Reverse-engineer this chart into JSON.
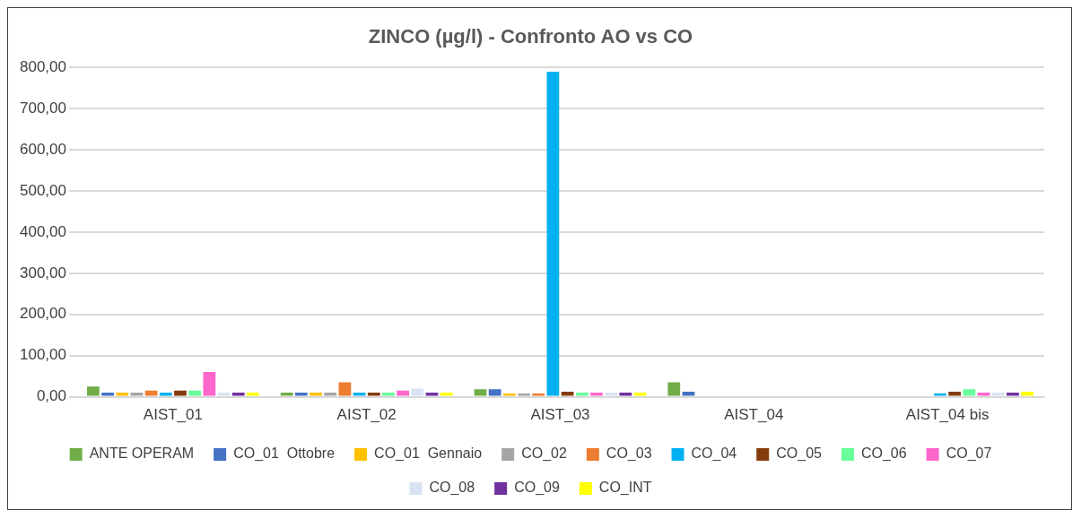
{
  "chart_data": {
    "type": "bar",
    "title": "ZINCO (µg/l) - Confronto AO vs CO",
    "categories": [
      "AIST_01",
      "AIST_02",
      "AIST_03",
      "AIST_04",
      "AIST_04 bis"
    ],
    "series": [
      {
        "name": "ANTE OPERAM",
        "color": "#70ad47",
        "values": [
          25,
          10,
          18,
          35,
          null
        ]
      },
      {
        "name": "CO_01  Ottobre",
        "color": "#4472c4",
        "values": [
          10,
          10,
          18,
          12,
          null
        ]
      },
      {
        "name": "CO_01  Gennaio",
        "color": "#ffc000",
        "values": [
          10,
          10,
          8,
          null,
          null
        ]
      },
      {
        "name": "CO_02",
        "color": "#a5a5a5",
        "values": [
          10,
          10,
          8,
          null,
          null
        ]
      },
      {
        "name": "CO_03",
        "color": "#ed7d31",
        "values": [
          15,
          35,
          8,
          null,
          null
        ]
      },
      {
        "name": "CO_04",
        "color": "#00b0f0",
        "values": [
          10,
          10,
          790,
          null,
          8
        ]
      },
      {
        "name": "CO_05",
        "color": "#843c0c",
        "values": [
          15,
          10,
          12,
          null,
          12
        ]
      },
      {
        "name": "CO_06",
        "color": "#66ff99",
        "values": [
          15,
          10,
          10,
          null,
          18
        ]
      },
      {
        "name": "CO_07",
        "color": "#ff66cc",
        "values": [
          60,
          15,
          10,
          null,
          10
        ]
      },
      {
        "name": "CO_08",
        "color": "#dae3f3",
        "values": [
          10,
          20,
          10,
          null,
          10
        ]
      },
      {
        "name": "CO_09",
        "color": "#7030a0",
        "values": [
          10,
          10,
          10,
          null,
          10
        ]
      },
      {
        "name": "CO_INT",
        "color": "#ffff00",
        "values": [
          10,
          10,
          10,
          null,
          12
        ]
      }
    ],
    "ylim": [
      0,
      800
    ],
    "yticks": [
      {
        "value": 0,
        "label": "0,00"
      },
      {
        "value": 100,
        "label": "100,00"
      },
      {
        "value": 200,
        "label": "200,00"
      },
      {
        "value": 300,
        "label": "300,00"
      },
      {
        "value": 400,
        "label": "400,00"
      },
      {
        "value": 500,
        "label": "500,00"
      },
      {
        "value": 600,
        "label": "600,00"
      },
      {
        "value": 700,
        "label": "700,00"
      },
      {
        "value": 800,
        "label": "800,00"
      }
    ],
    "grid": "y",
    "legend": "bottom"
  }
}
